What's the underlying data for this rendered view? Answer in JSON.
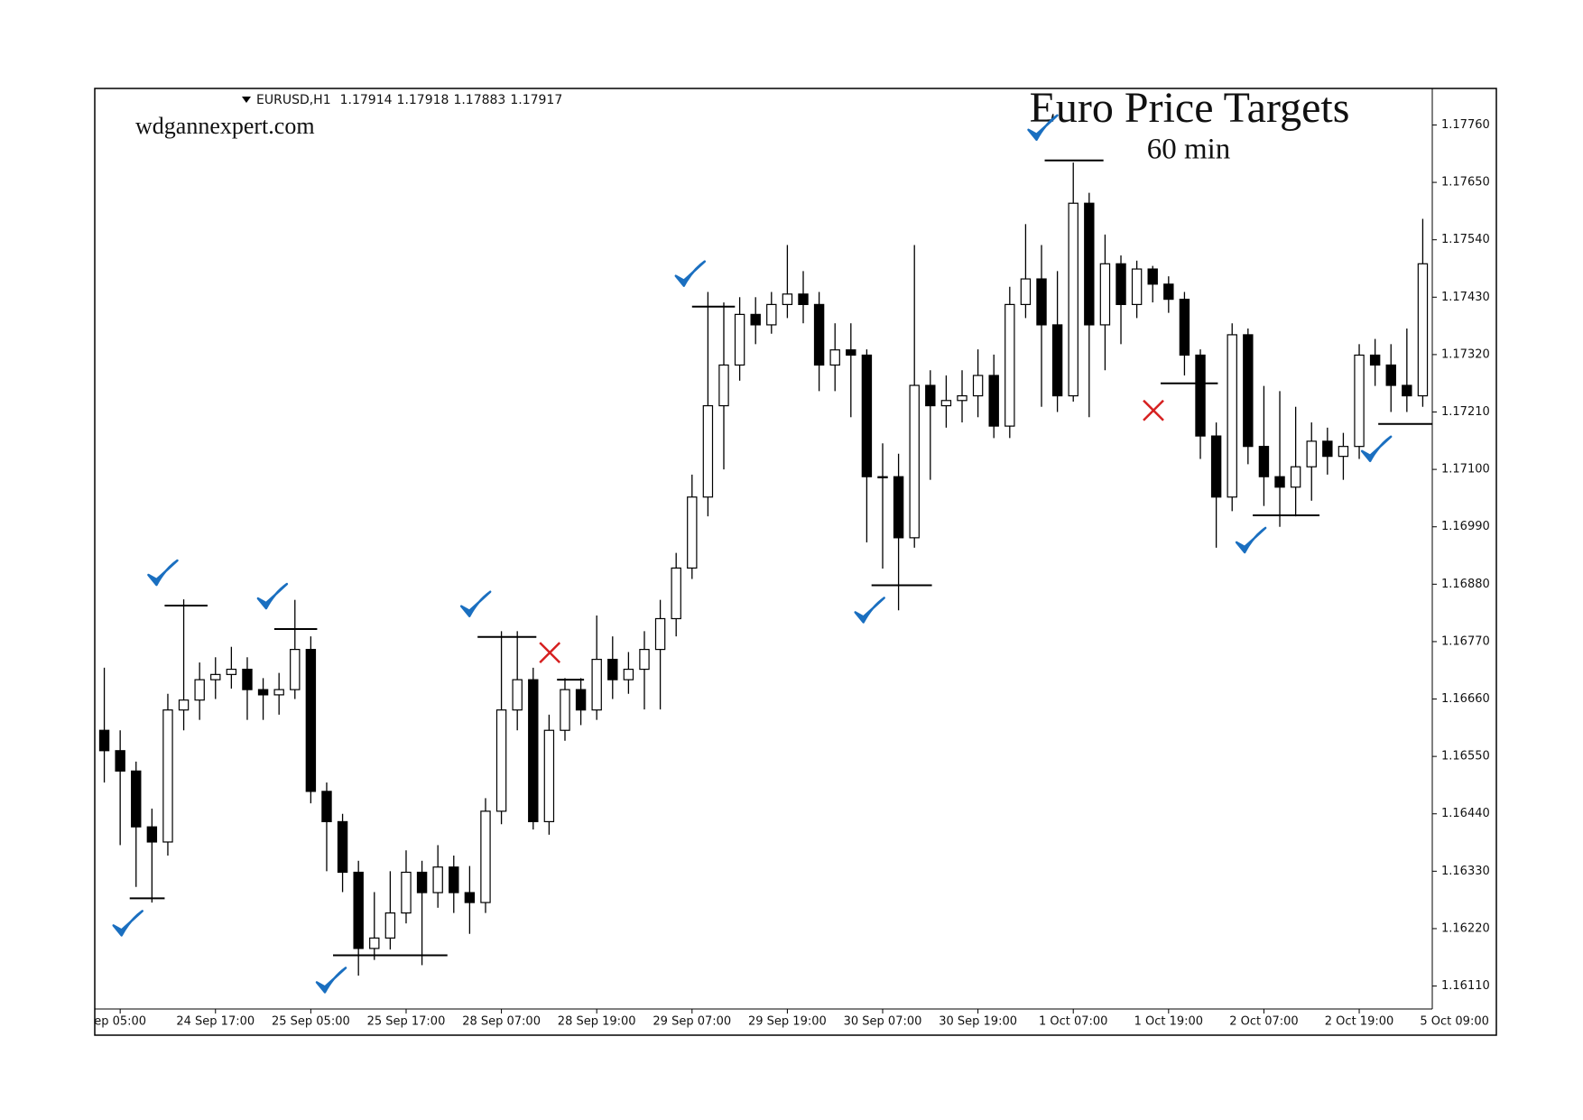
{
  "chart_data": {
    "type": "candlestick",
    "title": "Euro Price Targets",
    "subtitle": "60 min",
    "watermark": "wdgannexpert.com",
    "symbol": "EURUSD,H1",
    "quote": [
      1.17914,
      1.17918,
      1.17883,
      1.17917
    ],
    "open": [
      1.166,
      1.16561,
      1.16522,
      1.16415,
      1.16386,
      1.16639,
      1.16658,
      1.16697,
      1.16707,
      1.16717,
      1.16678,
      1.16668,
      1.16678,
      1.16755,
      1.16483,
      1.16425,
      1.16328,
      1.16182,
      1.16202,
      1.1625,
      1.16328,
      1.16289,
      1.16338,
      1.16289,
      1.1627,
      1.16445,
      1.16639,
      1.16697,
      1.16425,
      1.166,
      1.16678,
      1.16639,
      1.16736,
      1.16697,
      1.16717,
      1.16755,
      1.16814,
      1.16911,
      1.17047,
      1.17222,
      1.173,
      1.17397,
      1.17377,
      1.17416,
      1.17436,
      1.17416,
      1.173,
      1.17329,
      1.17319,
      1.17086,
      1.17086,
      1.16969,
      1.17261,
      1.17222,
      1.17232,
      1.17241,
      1.1728,
      1.17183,
      1.17416,
      1.17465,
      1.17377,
      1.17241,
      1.1761,
      1.17377,
      1.17494,
      1.17416,
      1.17484,
      1.17455,
      1.17426,
      1.17319,
      1.17164,
      1.17047,
      1.17358,
      1.17144,
      1.17086,
      1.17066,
      1.17105,
      1.17154,
      1.17125,
      1.17144,
      1.17319,
      1.173,
      1.17261,
      1.17241
    ],
    "high": [
      1.1672,
      1.166,
      1.1654,
      1.1645,
      1.1667,
      1.16851,
      1.1673,
      1.1674,
      1.1676,
      1.1674,
      1.167,
      1.1671,
      1.1685,
      1.1678,
      1.165,
      1.1644,
      1.1635,
      1.1629,
      1.1633,
      1.1637,
      1.1635,
      1.1638,
      1.1636,
      1.1634,
      1.1647,
      1.1679,
      1.1679,
      1.1672,
      1.1663,
      1.167,
      1.167,
      1.1682,
      1.1678,
      1.1675,
      1.1679,
      1.1685,
      1.1694,
      1.1709,
      1.1744,
      1.1742,
      1.1743,
      1.1743,
      1.1744,
      1.1753,
      1.1748,
      1.1744,
      1.1738,
      1.1738,
      1.1733,
      1.1715,
      1.1713,
      1.1753,
      1.1729,
      1.1728,
      1.1729,
      1.1733,
      1.1732,
      1.1745,
      1.1757,
      1.1753,
      1.1748,
      1.17688,
      1.1763,
      1.1755,
      1.1751,
      1.175,
      1.1749,
      1.1747,
      1.1744,
      1.1733,
      1.1719,
      1.1738,
      1.1737,
      1.1726,
      1.1725,
      1.1722,
      1.1719,
      1.1718,
      1.1717,
      1.1734,
      1.1735,
      1.1734,
      1.1737,
      1.1758
    ],
    "low": [
      1.165,
      1.1638,
      1.163,
      1.1627,
      1.1636,
      1.166,
      1.1662,
      1.1666,
      1.1668,
      1.1662,
      1.1662,
      1.1663,
      1.1666,
      1.1646,
      1.1633,
      1.1629,
      1.1613,
      1.1616,
      1.1618,
      1.1623,
      1.1615,
      1.1626,
      1.1625,
      1.1621,
      1.1625,
      1.1642,
      1.166,
      1.1641,
      1.164,
      1.1658,
      1.1661,
      1.1662,
      1.1666,
      1.1667,
      1.1664,
      1.1664,
      1.1678,
      1.1689,
      1.1701,
      1.171,
      1.1727,
      1.1734,
      1.1736,
      1.1739,
      1.1738,
      1.1725,
      1.1725,
      1.172,
      1.1696,
      1.1691,
      1.1683,
      1.1695,
      1.1708,
      1.1718,
      1.1719,
      1.172,
      1.1716,
      1.1716,
      1.1739,
      1.1722,
      1.1721,
      1.1723,
      1.172,
      1.1729,
      1.1734,
      1.1739,
      1.1742,
      1.174,
      1.1728,
      1.1712,
      1.1695,
      1.1702,
      1.1711,
      1.1703,
      1.1699,
      1.1701,
      1.1704,
      1.1709,
      1.1708,
      1.1712,
      1.1726,
      1.1721,
      1.1721,
      1.1722
    ],
    "close": [
      1.16561,
      1.16522,
      1.16415,
      1.16386,
      1.16639,
      1.16658,
      1.16697,
      1.16707,
      1.16717,
      1.16678,
      1.16668,
      1.16678,
      1.16755,
      1.16483,
      1.16425,
      1.16328,
      1.16182,
      1.16202,
      1.1625,
      1.16328,
      1.16289,
      1.16338,
      1.16289,
      1.1627,
      1.16445,
      1.16639,
      1.16697,
      1.16425,
      1.166,
      1.16678,
      1.16639,
      1.16736,
      1.16697,
      1.16717,
      1.16755,
      1.16814,
      1.16911,
      1.17047,
      1.17222,
      1.173,
      1.17397,
      1.17377,
      1.17416,
      1.17436,
      1.17416,
      1.173,
      1.17329,
      1.17319,
      1.17086,
      1.17086,
      1.16969,
      1.17261,
      1.17222,
      1.17232,
      1.17241,
      1.1728,
      1.17183,
      1.17416,
      1.17465,
      1.17377,
      1.17241,
      1.1761,
      1.17377,
      1.17494,
      1.17416,
      1.17484,
      1.17455,
      1.17426,
      1.17319,
      1.17164,
      1.17047,
      1.17358,
      1.17144,
      1.17086,
      1.17066,
      1.17105,
      1.17154,
      1.17125,
      1.17144,
      1.17319,
      1.173,
      1.17261,
      1.17241,
      1.17494
    ],
    "up_color": "#ffffff",
    "down_color": "#000000",
    "xlim": [
      -0.6,
      83.6
    ],
    "xticks": [
      {
        "value": 1,
        "label": "ep 05:00"
      },
      {
        "value": 7,
        "label": "24 Sep 17:00"
      },
      {
        "value": 13,
        "label": "25 Sep 05:00"
      },
      {
        "value": 19,
        "label": "25 Sep 17:00"
      },
      {
        "value": 25,
        "label": "28 Sep 07:00"
      },
      {
        "value": 31,
        "label": "28 Sep 19:00"
      },
      {
        "value": 37,
        "label": "29 Sep 07:00"
      },
      {
        "value": 43,
        "label": "29 Sep 19:00"
      },
      {
        "value": 49,
        "label": "30 Sep 07:00"
      },
      {
        "value": 55,
        "label": "30 Sep 19:00"
      },
      {
        "value": 61,
        "label": "1 Oct 07:00"
      },
      {
        "value": 67,
        "label": "1 Oct 19:00"
      },
      {
        "value": 73,
        "label": "2 Oct 07:00"
      },
      {
        "value": 79,
        "label": "2 Oct 19:00"
      },
      {
        "value": 85,
        "label": "5 Oct 09:00"
      }
    ],
    "ylim": [
      1.16066,
      1.1783
    ],
    "yticks": [
      {
        "value": 1.1776,
        "label": "1.17760"
      },
      {
        "value": 1.1765,
        "label": "1.17650"
      },
      {
        "value": 1.1754,
        "label": "1.17540"
      },
      {
        "value": 1.1743,
        "label": "1.17430"
      },
      {
        "value": 1.1732,
        "label": "1.17320"
      },
      {
        "value": 1.1721,
        "label": "1.17210"
      },
      {
        "value": 1.171,
        "label": "1.17100"
      },
      {
        "value": 1.1699,
        "label": "1.16990"
      },
      {
        "value": 1.1688,
        "label": "1.16880"
      },
      {
        "value": 1.1677,
        "label": "1.16770"
      },
      {
        "value": 1.1666,
        "label": "1.16660"
      },
      {
        "value": 1.1655,
        "label": "1.16550"
      },
      {
        "value": 1.1644,
        "label": "1.16440"
      },
      {
        "value": 1.1633,
        "label": "1.16330"
      },
      {
        "value": 1.1622,
        "label": "1.16220"
      },
      {
        "value": 1.1611,
        "label": "1.16110"
      }
    ],
    "targets": [
      {
        "price": 1.16278,
        "from": 1.6,
        "to": 3.8,
        "result": "hit"
      },
      {
        "price": 1.16839,
        "from": 3.8,
        "to": 6.5,
        "result": "hit"
      },
      {
        "price": 1.16794,
        "from": 10.7,
        "to": 13.4,
        "result": "hit"
      },
      {
        "price": 1.16169,
        "from": 14.4,
        "to": 21.6,
        "result": "hit"
      },
      {
        "price": 1.16779,
        "from": 23.5,
        "to": 27.2,
        "result": "hit"
      },
      {
        "price": 1.16697,
        "from": 28.5,
        "to": 30.2,
        "result": "miss"
      },
      {
        "price": 1.17412,
        "from": 37,
        "to": 39.7,
        "result": "hit"
      },
      {
        "price": 1.16878,
        "from": 48.3,
        "to": 52.1,
        "result": "hit"
      },
      {
        "price": 1.17692,
        "from": 59.2,
        "to": 62.9,
        "result": "hit"
      },
      {
        "price": 1.17265,
        "from": 66.5,
        "to": 70.1,
        "result": "miss"
      },
      {
        "price": 1.17012,
        "from": 72.3,
        "to": 76.5,
        "result": "hit"
      },
      {
        "price": 1.17187,
        "from": 80.2,
        "to": 83.6,
        "result": "hit"
      }
    ],
    "hit_color": "#1a6fc0",
    "miss_color": "#d62020"
  }
}
